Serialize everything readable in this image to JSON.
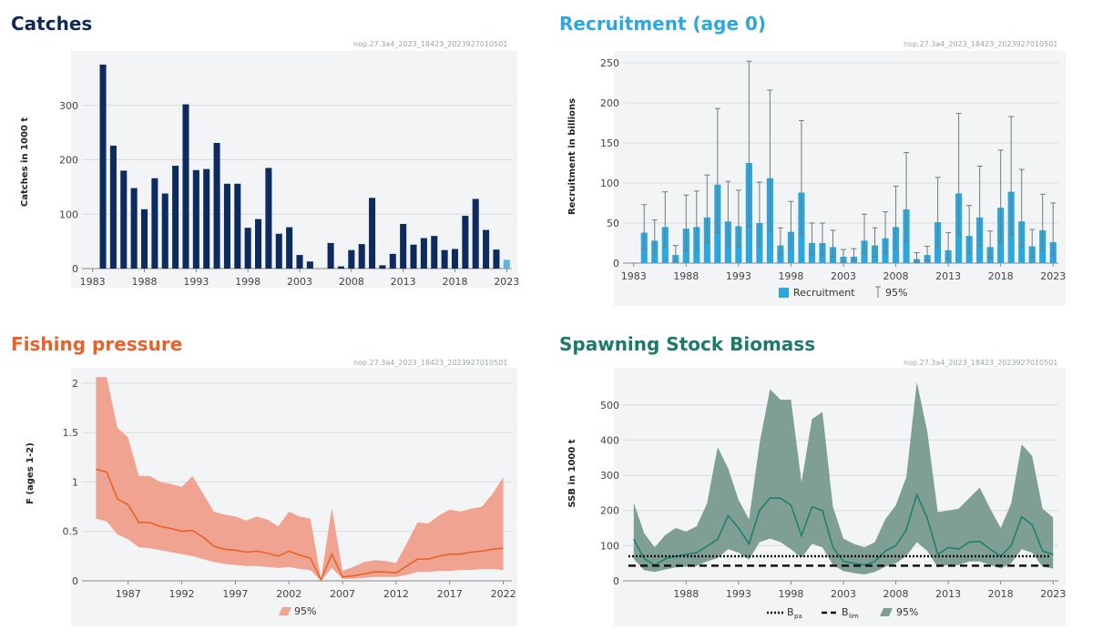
{
  "colors": {
    "catches_title": "#0f2a56",
    "catches_bar": "#0d2b5e",
    "catches_last": "#5bb2e6",
    "recruit_title": "#2ea7e0",
    "recruit_bar": "#2ba6de",
    "recruit_err": "#6b7f7a",
    "fishing_title": "#e8622a",
    "fishing_band": "#f0a391",
    "fishing_line": "#e8622a",
    "ssb_title": "#1d7a6b",
    "ssb_band": "#7f9f94",
    "ssb_line": "#1f8070"
  },
  "chart_data": [
    {
      "id": "catches",
      "type": "bar",
      "title": "Catches",
      "code": "nop.27.3a4_2023_18423_2023927010501",
      "ylabel": "Catches in 1000 t",
      "xlabel": "",
      "xlim": [
        1982.5,
        2023.5
      ],
      "ylim": [
        0,
        390
      ],
      "yticks": [
        0,
        100,
        200,
        300
      ],
      "xticks": [
        1983,
        1988,
        1993,
        1998,
        2003,
        2008,
        2013,
        2018,
        2023
      ],
      "years": [
        1984,
        1985,
        1986,
        1987,
        1988,
        1989,
        1990,
        1991,
        1992,
        1993,
        1994,
        1995,
        1996,
        1997,
        1998,
        1999,
        2000,
        2001,
        2002,
        2003,
        2004,
        2005,
        2006,
        2007,
        2008,
        2009,
        2010,
        2011,
        2012,
        2013,
        2014,
        2015,
        2016,
        2017,
        2018,
        2019,
        2020,
        2021,
        2022,
        2023
      ],
      "values": [
        375,
        226,
        180,
        148,
        109,
        166,
        138,
        189,
        302,
        181,
        183,
        231,
        156,
        156,
        75,
        91,
        185,
        64,
        76,
        25,
        13,
        0,
        47,
        4,
        34,
        45,
        130,
        6,
        27,
        82,
        44,
        56,
        60,
        34,
        36,
        97,
        128,
        71,
        35,
        16
      ]
    },
    {
      "id": "recruitment",
      "type": "bar",
      "title": "Recruitment (age 0)",
      "code": "nop.27.3a4_2023_18423_2023927010501",
      "ylabel": "Recruitment in billions",
      "xlabel": "",
      "legend": {
        "bar": "Recruitment",
        "err": "95%"
      },
      "xlim": [
        1982.5,
        2023.5
      ],
      "ylim": [
        0,
        258
      ],
      "yticks": [
        0,
        50,
        100,
        150,
        200,
        250
      ],
      "xticks": [
        1983,
        1988,
        1993,
        1998,
        2003,
        2008,
        2013,
        2018,
        2023
      ],
      "years": [
        1984,
        1985,
        1986,
        1987,
        1988,
        1989,
        1990,
        1991,
        1992,
        1993,
        1994,
        1995,
        1996,
        1997,
        1998,
        1999,
        2000,
        2001,
        2002,
        2003,
        2004,
        2005,
        2006,
        2007,
        2008,
        2009,
        2010,
        2011,
        2012,
        2013,
        2014,
        2015,
        2016,
        2017,
        2018,
        2019,
        2020,
        2021,
        2022,
        2023
      ],
      "values": [
        38,
        28,
        45,
        10,
        43,
        45,
        57,
        98,
        52,
        46,
        125,
        50,
        106,
        22,
        39,
        88,
        25,
        25,
        20,
        8,
        8,
        28,
        22,
        31,
        45,
        67,
        5,
        10,
        51,
        16,
        87,
        34,
        57,
        20,
        69,
        89,
        52,
        21,
        41,
        26
      ],
      "lower": [
        18,
        12,
        20,
        2,
        15,
        18,
        25,
        38,
        22,
        20,
        45,
        20,
        40,
        10,
        18,
        36,
        10,
        10,
        8,
        2,
        3,
        12,
        8,
        13,
        18,
        28,
        1,
        3,
        20,
        5,
        35,
        12,
        22,
        7,
        27,
        35,
        20,
        8,
        16,
        10
      ],
      "upper": [
        73,
        54,
        89,
        22,
        85,
        90,
        110,
        193,
        102,
        91,
        252,
        101,
        216,
        44,
        77,
        178,
        50,
        50,
        41,
        17,
        18,
        61,
        44,
        64,
        96,
        138,
        13,
        21,
        107,
        38,
        187,
        72,
        121,
        40,
        141,
        183,
        117,
        42,
        86,
        75
      ]
    },
    {
      "id": "fishing",
      "type": "area",
      "title": "Fishing pressure",
      "code": "nop.27.3a4_2023_18423_2023927010501",
      "ylabel": "F (ages 1-2)",
      "xlabel": "",
      "legend": {
        "band": "95%"
      },
      "xlim": [
        1983.2,
        2022.8
      ],
      "ylim": [
        0,
        2.1
      ],
      "yticks": [
        0,
        0.5,
        1,
        1.5,
        2
      ],
      "ytick_labels": [
        "0",
        "0.5",
        "1",
        "1.5",
        "2"
      ],
      "xticks": [
        1987,
        1992,
        1997,
        2002,
        2007,
        2012,
        2017,
        2022
      ],
      "years": [
        1984,
        1985,
        1986,
        1987,
        1988,
        1989,
        1990,
        1991,
        1992,
        1993,
        1994,
        1995,
        1996,
        1997,
        1998,
        1999,
        2000,
        2001,
        2002,
        2003,
        2004,
        2005,
        2006,
        2007,
        2008,
        2009,
        2010,
        2011,
        2012,
        2013,
        2014,
        2015,
        2016,
        2017,
        2018,
        2019,
        2020,
        2021,
        2022
      ],
      "values": [
        1.13,
        1.1,
        0.83,
        0.77,
        0.59,
        0.59,
        0.55,
        0.53,
        0.5,
        0.51,
        0.44,
        0.35,
        0.32,
        0.31,
        0.29,
        0.3,
        0.28,
        0.25,
        0.3,
        0.26,
        0.23,
        0.01,
        0.27,
        0.04,
        0.05,
        0.07,
        0.09,
        0.09,
        0.08,
        0.15,
        0.22,
        0.22,
        0.25,
        0.27,
        0.27,
        0.29,
        0.3,
        0.32,
        0.33
      ],
      "lower": [
        0.63,
        0.6,
        0.47,
        0.42,
        0.34,
        0.33,
        0.31,
        0.29,
        0.27,
        0.25,
        0.22,
        0.19,
        0.17,
        0.16,
        0.15,
        0.15,
        0.14,
        0.13,
        0.14,
        0.12,
        0.11,
        0.0,
        0.13,
        0.02,
        0.02,
        0.03,
        0.04,
        0.04,
        0.04,
        0.06,
        0.09,
        0.09,
        0.1,
        0.1,
        0.11,
        0.11,
        0.12,
        0.12,
        0.11
      ],
      "upper": [
        2.06,
        2.06,
        1.55,
        1.45,
        1.06,
        1.06,
        1.0,
        0.98,
        0.95,
        1.06,
        0.88,
        0.7,
        0.67,
        0.65,
        0.61,
        0.65,
        0.62,
        0.55,
        0.7,
        0.65,
        0.63,
        0.02,
        0.74,
        0.1,
        0.14,
        0.19,
        0.21,
        0.2,
        0.18,
        0.38,
        0.59,
        0.58,
        0.66,
        0.72,
        0.7,
        0.73,
        0.75,
        0.88,
        1.05
      ]
    },
    {
      "id": "ssb",
      "type": "area",
      "title": "Spawning Stock Biomass",
      "code": "nop.27.3a4_2023_18423_2023927010501",
      "ylabel": "SSB in 1000 t",
      "xlabel": "",
      "legend": {
        "bpa": "B",
        "bpa_sub": "pa",
        "blim": "B",
        "blim_sub": "lim",
        "band": "95%"
      },
      "xlim": [
        1982.5,
        2023.5
      ],
      "ylim": [
        0,
        590
      ],
      "yticks": [
        0,
        100,
        200,
        300,
        400,
        500
      ],
      "xticks": [
        1988,
        1993,
        1998,
        2003,
        2008,
        2013,
        2018,
        2023
      ],
      "bpa": 70,
      "blim": 43,
      "years": [
        1983,
        1984,
        1985,
        1986,
        1987,
        1988,
        1989,
        1990,
        1991,
        1992,
        1993,
        1994,
        1995,
        1996,
        1997,
        1998,
        1999,
        2000,
        2001,
        2002,
        2003,
        2004,
        2005,
        2006,
        2007,
        2008,
        2009,
        2010,
        2011,
        2012,
        2013,
        2014,
        2015,
        2016,
        2017,
        2018,
        2019,
        2020,
        2021,
        2022,
        2023
      ],
      "values": [
        118,
        63,
        45,
        62,
        70,
        75,
        80,
        98,
        118,
        185,
        150,
        105,
        200,
        235,
        235,
        215,
        128,
        210,
        200,
        95,
        55,
        50,
        45,
        55,
        85,
        100,
        145,
        245,
        178,
        75,
        95,
        90,
        110,
        112,
        90,
        70,
        100,
        182,
        160,
        85,
        75
      ],
      "lower": [
        62,
        30,
        25,
        32,
        38,
        40,
        42,
        55,
        65,
        90,
        80,
        60,
        110,
        120,
        110,
        90,
        65,
        105,
        95,
        45,
        28,
        22,
        18,
        25,
        40,
        50,
        70,
        110,
        85,
        38,
        45,
        45,
        55,
        55,
        45,
        35,
        50,
        90,
        80,
        40,
        35
      ],
      "upper": [
        222,
        135,
        95,
        130,
        150,
        140,
        155,
        220,
        380,
        320,
        230,
        175,
        390,
        545,
        515,
        515,
        280,
        460,
        480,
        210,
        120,
        105,
        95,
        110,
        175,
        215,
        295,
        565,
        425,
        195,
        200,
        205,
        235,
        265,
        205,
        150,
        220,
        388,
        355,
        205,
        180
      ]
    }
  ]
}
